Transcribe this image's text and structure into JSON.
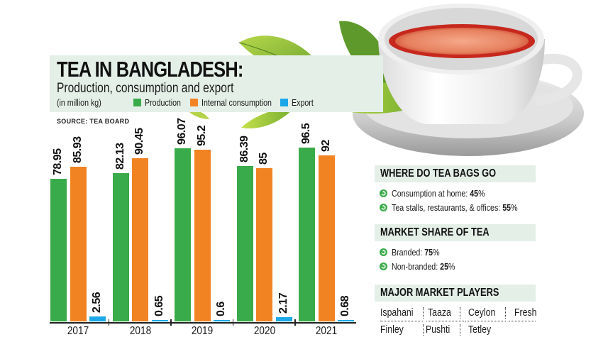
{
  "header": {
    "title": "TEA IN BANGLADESH:",
    "subtitle": "Production, consumption and export",
    "units": "(in million kg)",
    "source": "SOURCE: TEA BOARD"
  },
  "legend": [
    {
      "label": "Production",
      "color": "#3aab4a"
    },
    {
      "label": "Internal consumption",
      "color": "#f28323"
    },
    {
      "label": "Export",
      "color": "#1ba7e8"
    }
  ],
  "chart_data": {
    "type": "bar",
    "title": "TEA IN BANGLADESH: Production, consumption and export",
    "subtitle": "(in million kg)",
    "source": "SOURCE: TEA BOARD",
    "categories": [
      "2017",
      "2018",
      "2019",
      "2020",
      "2021"
    ],
    "series": [
      {
        "name": "Production",
        "color": "#3aab4a",
        "values": [
          78.95,
          82.13,
          96.07,
          86.39,
          96.5
        ],
        "labels": [
          "78.95",
          "82.13",
          "96.07",
          "86.39",
          "96.5"
        ]
      },
      {
        "name": "Internal consumption",
        "color": "#f28323",
        "values": [
          85.93,
          90.45,
          95.2,
          85,
          92
        ],
        "labels": [
          "85.93",
          "90.45",
          "95.2",
          "85",
          "92"
        ]
      },
      {
        "name": "Export",
        "color": "#1ba7e8",
        "values": [
          2.56,
          0.65,
          0.6,
          2.17,
          0.68
        ],
        "labels": [
          "2.56",
          "0.65",
          "0.6",
          "2.17",
          "0.68"
        ]
      }
    ],
    "xlabel": "",
    "ylabel": "million kg",
    "grid": false,
    "legend_position": "top",
    "data_labels": true
  },
  "panels": {
    "tea_bags": {
      "title": "WHERE DO TEA BAGS GO",
      "items": [
        {
          "label": "Consumption at home: ",
          "value": "45",
          "unit": "%"
        },
        {
          "label": "Tea stalls, restaurants, & offices: ",
          "value": "55",
          "unit": "%"
        }
      ]
    },
    "market_share": {
      "title": "MARKET SHARE OF TEA",
      "items": [
        {
          "label": "Branded: ",
          "value": "75",
          "unit": "%"
        },
        {
          "label": "Non-branded: ",
          "value": "25",
          "unit": "%"
        }
      ]
    },
    "players": {
      "title": "MAJOR MARKET PLAYERS",
      "row1": [
        "Ispahani",
        "Taaza",
        "Ceylon",
        "Fresh"
      ],
      "row2": [
        "Finley",
        "Pushti",
        "Tetley"
      ]
    }
  },
  "colors": {
    "panel_bg": "#e4efe8",
    "bullet_icon": "#3aab4a"
  }
}
